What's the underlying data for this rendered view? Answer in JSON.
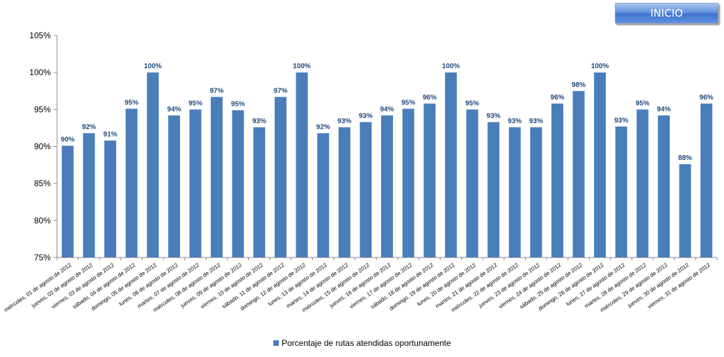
{
  "header": {
    "inicio_label": "INICIO"
  },
  "colors": {
    "bar": "#4a7ebb",
    "data_label": "#1f497d",
    "axis": "#888888"
  },
  "chart_data": {
    "type": "bar",
    "categories": [
      "miércoles, 01 de agosto de 2012",
      "jueves, 02 de agosto de 2012",
      "viernes, 03 de agosto de 2012",
      "sábado, 04 de agosto de 2012",
      "domingo, 05 de agosto de 2012",
      "lunes, 06 de agosto de 2012",
      "martes, 07 de agosto de 2012",
      "miércoles, 08 de agosto de 2012",
      "jueves, 09 de agosto de 2012",
      "viernes, 10 de agosto de 2012",
      "sábado, 11 de agosto de 2012",
      "domingo, 12 de agosto de 2012",
      "lunes, 13 de agosto de 2012",
      "martes, 14 de agosto de 2012",
      "miércoles, 15 de agosto de 2012",
      "jueves, 16 de agosto de 2012",
      "viernes, 17 de agosto de 2012",
      "sábado, 18 de agosto de 2012",
      "domingo, 19 de agosto de 2012",
      "lunes, 20 de agosto de 2012",
      "martes, 21 de agosto de 2012",
      "miércoles, 22 de agosto de 2012",
      "jueves, 23 de agosto de 2012",
      "viernes, 24 de agosto de 2012",
      "sábado, 25 de agosto de 2012",
      "domingo, 26 de agosto de 2012",
      "lunes, 27 de agosto de 2012",
      "martes, 28 de agosto de 2012",
      "miércoles, 29 de agosto de 2012",
      "jueves, 30 de agosto de 2012",
      "viernes, 31 de agosto de 2012"
    ],
    "series": [
      {
        "name": "Porcentaje de rutas atendidas oportunamente",
        "values": [
          90.1,
          91.8,
          90.8,
          95.1,
          100,
          94.2,
          95.0,
          96.7,
          94.9,
          92.6,
          96.7,
          100,
          91.8,
          92.6,
          93.3,
          94.2,
          95.1,
          95.8,
          100,
          95.0,
          93.3,
          92.6,
          92.6,
          95.8,
          97.5,
          100,
          92.7,
          95.0,
          94.2,
          87.6,
          95.8
        ],
        "labels": [
          "90%",
          "92%",
          "91%",
          "95%",
          "100%",
          "94%",
          "95%",
          "97%",
          "95%",
          "93%",
          "97%",
          "100%",
          "92%",
          "93%",
          "93%",
          "94%",
          "95%",
          "96%",
          "100%",
          "95%",
          "93%",
          "93%",
          "93%",
          "96%",
          "98%",
          "100%",
          "93%",
          "95%",
          "94%",
          "88%",
          "96%"
        ]
      }
    ],
    "y_ticks": [
      "75%",
      "80%",
      "85%",
      "90%",
      "95%",
      "100%",
      "105%"
    ],
    "ylim": [
      75,
      105
    ],
    "grid": false,
    "legend_position": "bottom"
  }
}
